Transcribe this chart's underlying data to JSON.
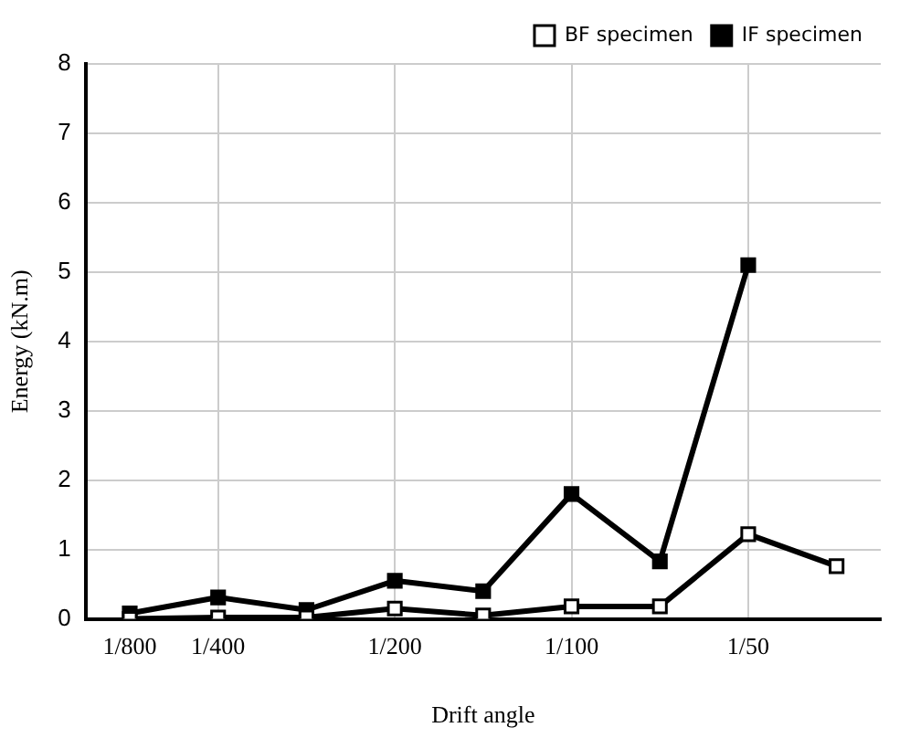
{
  "chart_data": {
    "type": "line",
    "xlabel": "Drift angle",
    "ylabel": "Energy (kN.m)",
    "categories": [
      "1/800",
      "1/400",
      null,
      "1/200",
      null,
      "1/100",
      null,
      "1/50",
      null
    ],
    "series": [
      {
        "name": "BF specimen",
        "color": "#000000",
        "values": [
          0.0,
          0.02,
          0.02,
          0.15,
          0.05,
          0.18,
          0.18,
          1.22,
          0.76
        ]
      },
      {
        "name": "IF specimen",
        "color": "#000000",
        "values": [
          0.08,
          0.31,
          0.13,
          0.55,
          0.4,
          1.8,
          0.83,
          5.1,
          null
        ]
      }
    ],
    "ylim": [
      0,
      8
    ],
    "yticks": [
      0,
      1,
      2,
      3,
      4,
      5,
      6,
      7,
      8
    ],
    "grid": true,
    "legend": "top right",
    "marker": "square",
    "line_style": "solid"
  }
}
